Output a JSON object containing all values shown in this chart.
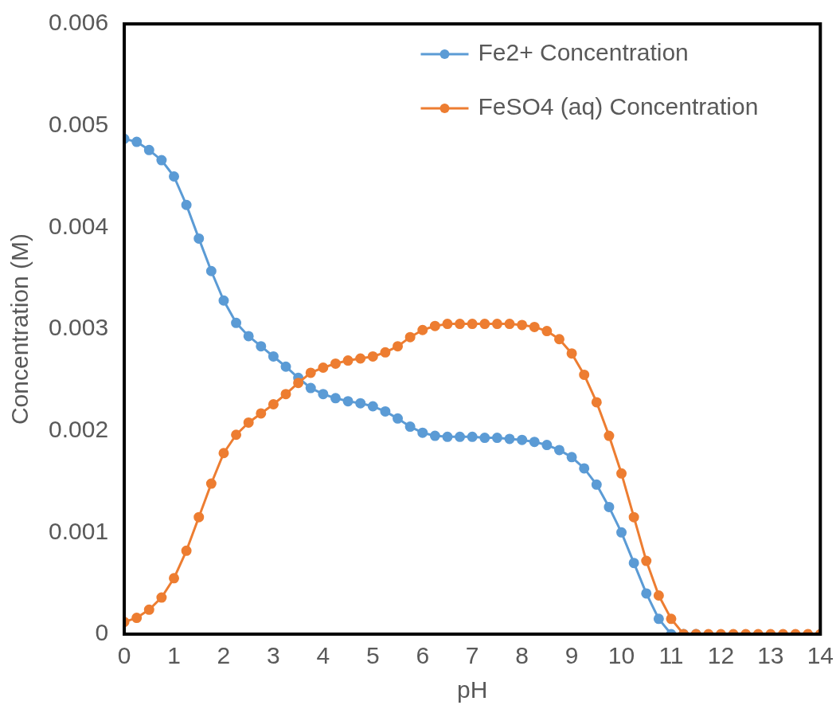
{
  "chart_data": {
    "type": "line",
    "xlabel": "pH",
    "ylabel": "Concentration (M)",
    "x": [
      0,
      0.25,
      0.5,
      0.75,
      1,
      1.25,
      1.5,
      1.75,
      2,
      2.25,
      2.5,
      2.75,
      3,
      3.25,
      3.5,
      3.75,
      4,
      4.25,
      4.5,
      4.75,
      5,
      5.25,
      5.5,
      5.75,
      6,
      6.25,
      6.5,
      6.75,
      7,
      7.25,
      7.5,
      7.75,
      8,
      8.25,
      8.5,
      8.75,
      9,
      9.25,
      9.5,
      9.75,
      10,
      10.25,
      10.5,
      10.75,
      11,
      11.25,
      11.5,
      11.75,
      12,
      12.25,
      12.5,
      12.75,
      13,
      13.25,
      13.5,
      13.75,
      14
    ],
    "series": [
      {
        "name": "Fe2+ Concentration",
        "color": "#5b9bd5",
        "values": [
          0.00487,
          0.00484,
          0.00476,
          0.00466,
          0.0045,
          0.00422,
          0.00389,
          0.00357,
          0.00328,
          0.00306,
          0.00293,
          0.00283,
          0.00273,
          0.00263,
          0.00252,
          0.00242,
          0.00236,
          0.00232,
          0.00229,
          0.00227,
          0.00224,
          0.00219,
          0.00212,
          0.00204,
          0.00198,
          0.00195,
          0.00194,
          0.00194,
          0.00194,
          0.00193,
          0.00193,
          0.00192,
          0.00191,
          0.00189,
          0.00186,
          0.00181,
          0.00174,
          0.00163,
          0.00147,
          0.00125,
          0.001,
          0.0007,
          0.0004,
          0.00015,
          0,
          0,
          0,
          null,
          null,
          null,
          null,
          null,
          null,
          null,
          null,
          null,
          null
        ]
      },
      {
        "name": "FeSO4 (aq) Concentration",
        "color": "#ed7d31",
        "values": [
          0.00012,
          0.00016,
          0.00024,
          0.00036,
          0.00055,
          0.00082,
          0.00115,
          0.00148,
          0.00178,
          0.00196,
          0.00208,
          0.00217,
          0.00226,
          0.00236,
          0.00247,
          0.00257,
          0.00262,
          0.00266,
          0.00269,
          0.00271,
          0.00273,
          0.00277,
          0.00283,
          0.00292,
          0.00299,
          0.00303,
          0.00305,
          0.00305,
          0.00305,
          0.00305,
          0.00305,
          0.00305,
          0.00304,
          0.00302,
          0.00298,
          0.0029,
          0.00276,
          0.00255,
          0.00228,
          0.00195,
          0.00158,
          0.00115,
          0.00072,
          0.00038,
          0.00015,
          0,
          0,
          0,
          0,
          0,
          0,
          0,
          0,
          0,
          0,
          0,
          0
        ]
      }
    ],
    "xlim": [
      0,
      14
    ],
    "xticks": [
      0,
      1,
      2,
      3,
      4,
      5,
      6,
      7,
      8,
      9,
      10,
      11,
      12,
      13,
      14
    ],
    "ylim": [
      0,
      0.006
    ],
    "yticks": [
      0,
      0.001,
      0.002,
      0.003,
      0.004,
      0.005,
      0.006
    ],
    "grid": false,
    "legend": "top right",
    "marker": "circle",
    "line_style": "solid"
  }
}
